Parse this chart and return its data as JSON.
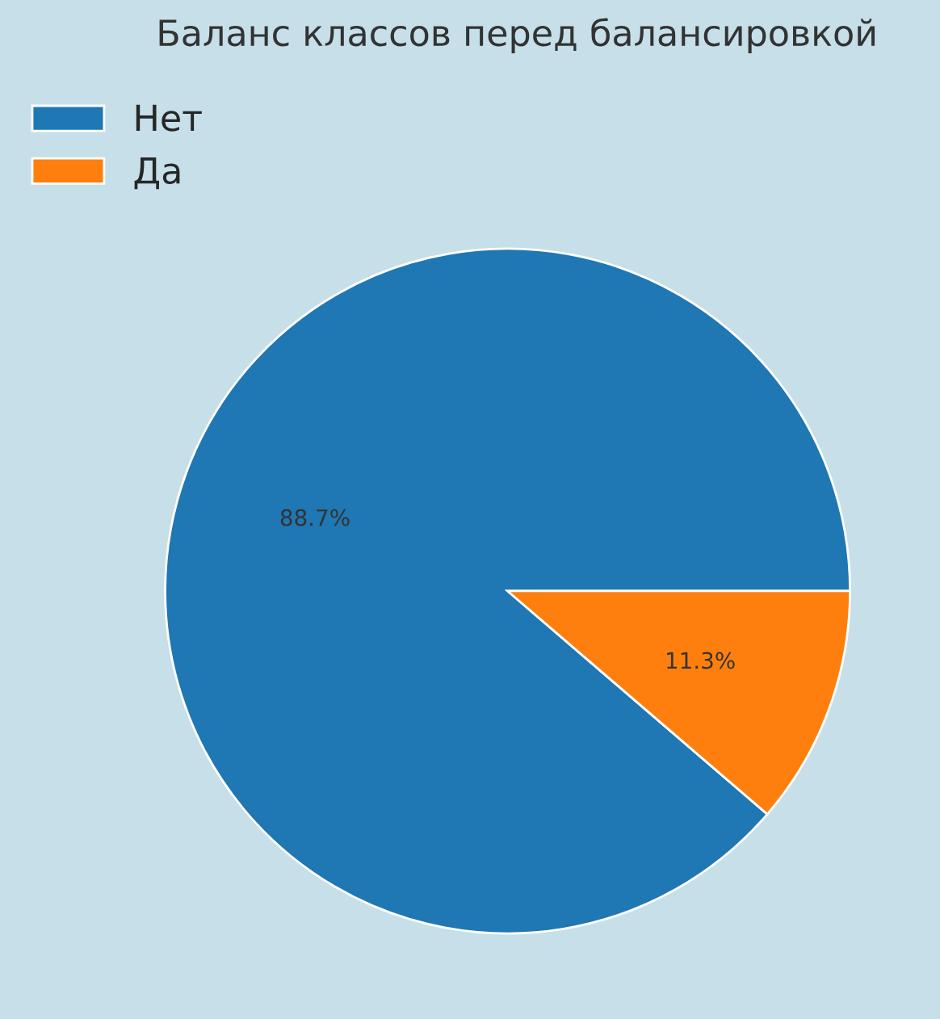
{
  "chart_data": {
    "type": "pie",
    "title": "Баланс классов перед балансировкой",
    "categories": [
      "Нет",
      "Да"
    ],
    "values": [
      88.7,
      11.3
    ],
    "colors": [
      "#1f77b4",
      "#ff7f0e"
    ],
    "value_labels": [
      "88.7%",
      "11.3%"
    ],
    "legend": "top left"
  }
}
